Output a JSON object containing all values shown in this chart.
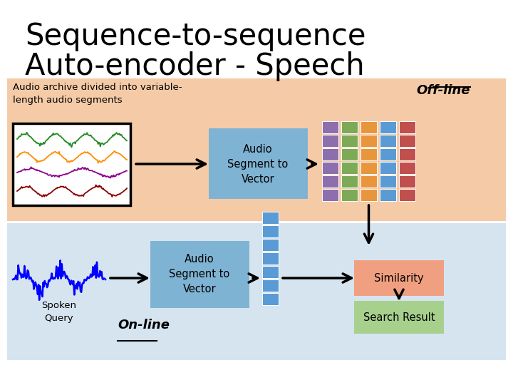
{
  "title_line1": "Sequence-to-sequence",
  "title_line2": "Auto-encoder - Speech",
  "offline_label": "Off-line",
  "online_label": "On-line",
  "offline_bg": "#f5cba7",
  "online_bg": "#d6e4f0",
  "audio_segment_box_color": "#7fb3d3",
  "similarity_box_color": "#f0a080",
  "search_result_box_color": "#a8d08d",
  "archive_text": "Audio archive divided into variable-\nlength audio segments",
  "spoken_query_text": "Spoken\nQuery",
  "audio_seg_vec_text": "Audio\nSegment to\nVector",
  "similarity_text": "Similarity",
  "search_result_text": "Search Result",
  "vector_colors_offline": [
    "#8e6fad",
    "#7daa57",
    "#e8963c",
    "#5b9bd5",
    "#c0504d"
  ],
  "vector_color_online": "#5b9bd5",
  "background": "#ffffff"
}
